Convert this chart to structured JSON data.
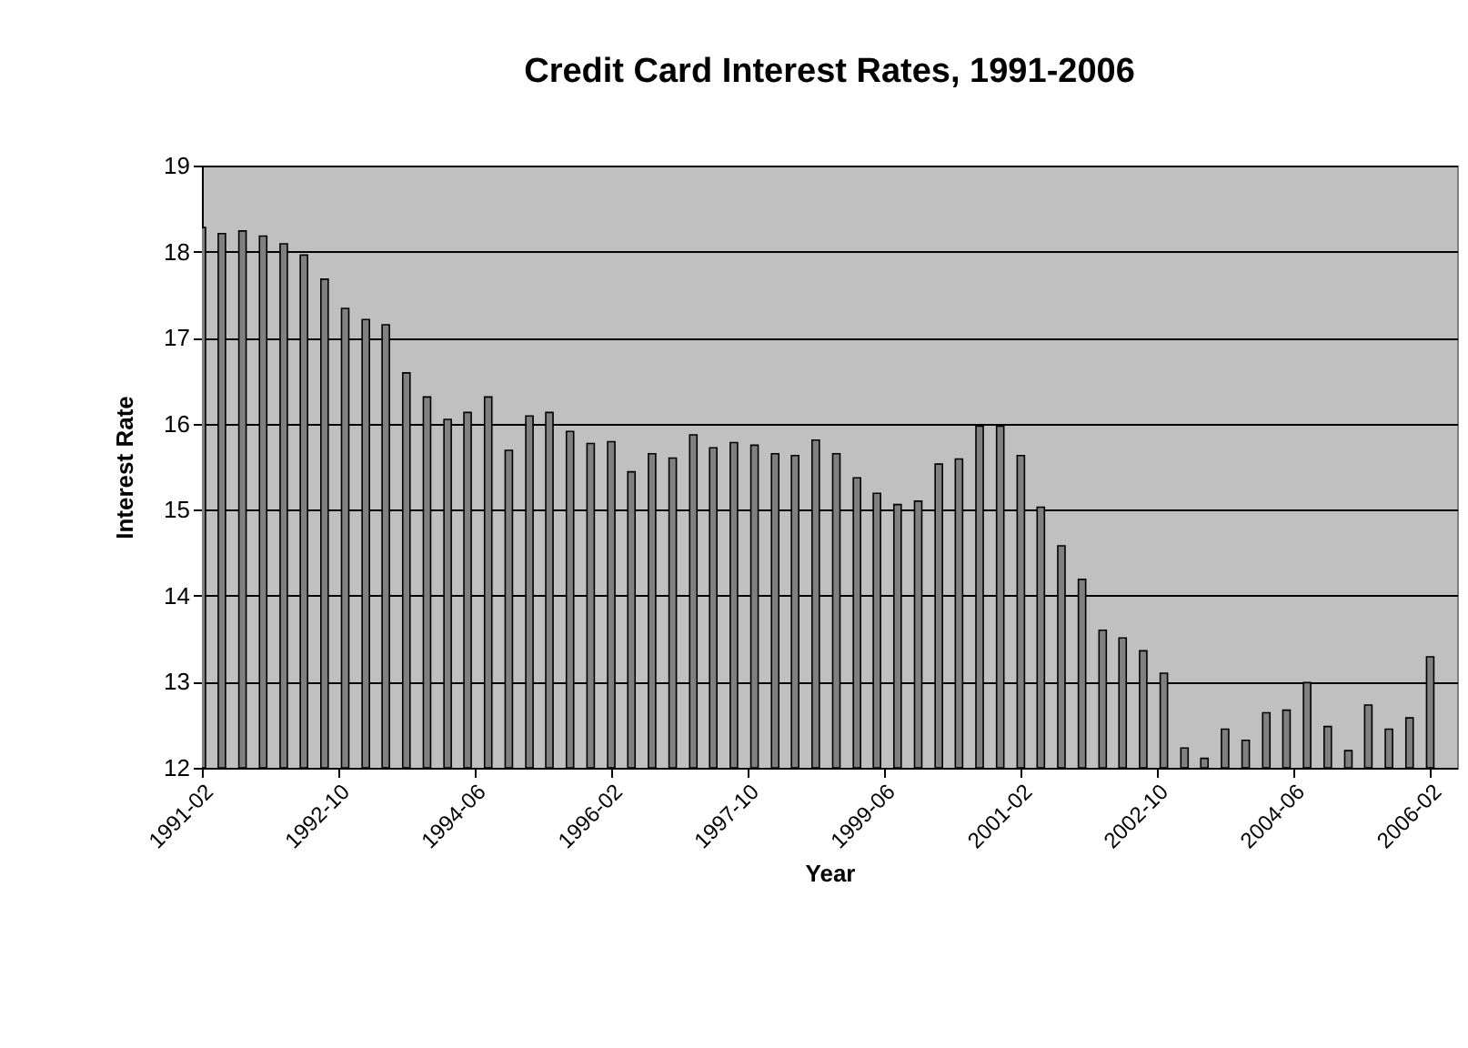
{
  "chart_data": {
    "type": "bar",
    "title": "Credit Card Interest Rates, 1991-2006",
    "xlabel": "Year",
    "ylabel": "Interest Rate",
    "x": [
      "1991-02",
      "1991-05",
      "1991-08",
      "1991-11",
      "1992-02",
      "1992-05",
      "1992-08",
      "1992-11",
      "1993-02",
      "1993-05",
      "1993-08",
      "1993-11",
      "1994-02",
      "1994-05",
      "1994-08",
      "1994-11",
      "1995-02",
      "1995-05",
      "1995-08",
      "1995-11",
      "1996-02",
      "1996-05",
      "1996-08",
      "1996-11",
      "1997-02",
      "1997-05",
      "1997-08",
      "1997-11",
      "1998-02",
      "1998-05",
      "1998-08",
      "1998-11",
      "1999-02",
      "1999-05",
      "1999-08",
      "1999-11",
      "2000-02",
      "2000-05",
      "2000-08",
      "2000-11",
      "2001-02",
      "2001-05",
      "2001-08",
      "2001-11",
      "2002-02",
      "2002-05",
      "2002-08",
      "2002-11",
      "2003-02",
      "2003-05",
      "2003-08",
      "2003-11",
      "2004-02",
      "2004-05",
      "2004-08",
      "2004-11",
      "2005-02",
      "2005-05",
      "2005-08",
      "2005-11",
      "2006-02"
    ],
    "values": [
      18.28,
      18.21,
      18.24,
      18.18,
      18.09,
      17.96,
      17.68,
      17.34,
      17.21,
      17.15,
      16.59,
      16.31,
      16.05,
      16.13,
      16.31,
      15.69,
      16.09,
      16.13,
      15.91,
      15.77,
      15.79,
      15.44,
      15.65,
      15.6,
      15.87,
      15.72,
      15.78,
      15.75,
      15.65,
      15.63,
      15.81,
      15.65,
      15.37,
      15.19,
      15.06,
      15.1,
      15.53,
      15.59,
      15.97,
      15.97,
      15.63,
      15.03,
      14.58,
      14.19,
      13.6,
      13.51,
      13.36,
      13.1,
      12.23,
      12.11,
      12.45,
      12.32,
      12.64,
      12.67,
      12.99,
      12.48,
      12.2,
      12.73,
      12.45,
      12.58,
      13.29
    ],
    "color": "#808080",
    "xlim": [
      "1991-02",
      "2006-06"
    ],
    "xticks": [
      "1991-02",
      "1992-10",
      "1994-06",
      "1996-02",
      "1997-10",
      "1999-06",
      "2001-02",
      "2002-10",
      "2004-06",
      "2006-02"
    ],
    "ylim": [
      12,
      19
    ],
    "yticks": [
      12,
      13,
      14,
      15,
      16,
      17,
      18,
      19
    ],
    "grid": "y"
  }
}
